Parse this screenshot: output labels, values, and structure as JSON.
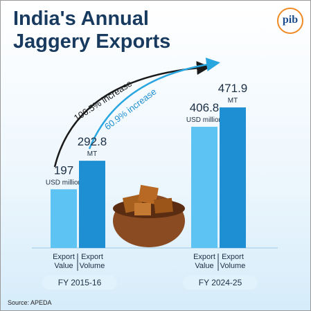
{
  "chart_data": {
    "type": "bar",
    "title": "India's Annual Jaggery Exports",
    "logo_text": "pib",
    "categories": [
      "FY 2015-16",
      "FY 2024-25"
    ],
    "series": [
      {
        "name": "Export Value",
        "unit": "USD million",
        "color": "#5cc3f2",
        "values": [
          197,
          406.8
        ]
      },
      {
        "name": "Export Volume",
        "unit": "MT",
        "color": "#1e8fd3",
        "values": [
          292.8,
          471.9
        ]
      }
    ],
    "annotations": [
      "106.5% increase",
      "60.9% increase"
    ],
    "source": "Source: APEDA"
  }
}
